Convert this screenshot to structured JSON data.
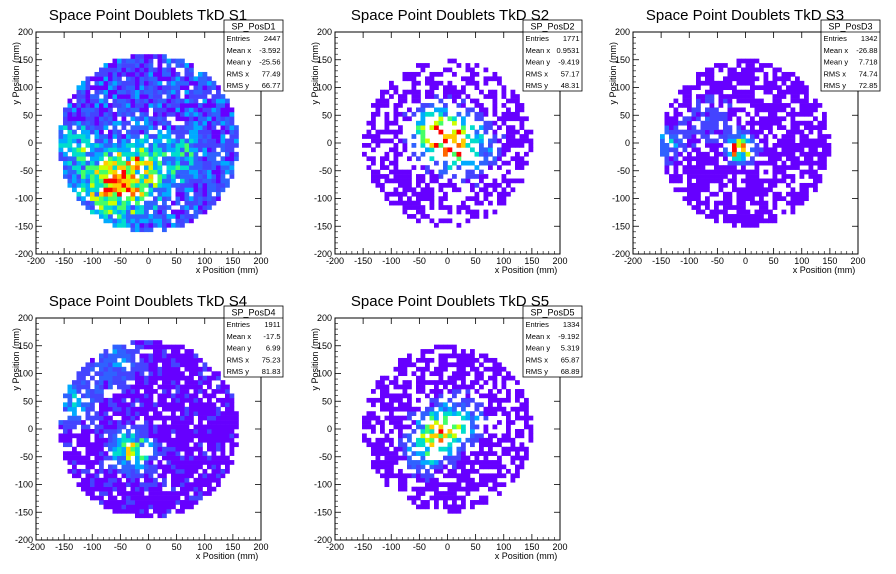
{
  "chart_data": [
    {
      "type": "heatmap",
      "title": "Space Point Doublets TkD S1",
      "xlabel": "x Position (mm)",
      "ylabel": "y Position (mm)",
      "xlim": [
        -200,
        200
      ],
      "ylim": [
        -200,
        200
      ],
      "xticks": [
        "-200",
        "-150",
        "-100",
        "-50",
        "0",
        "50",
        "100",
        "150",
        "200"
      ],
      "yticks": [
        "-200",
        "-150",
        "-100",
        "-50",
        "0",
        "50",
        "100",
        "150",
        "200"
      ],
      "stats_name": "SP_PosD1",
      "stats": [
        {
          "label": "Entries",
          "value": "2447"
        },
        {
          "label": "Mean x",
          "value": "-3.592"
        },
        {
          "label": "Mean y",
          "value": "-25.56"
        },
        {
          "label": "RMS x",
          "value": "77.49"
        },
        {
          "label": "RMS y",
          "value": "66.77"
        }
      ],
      "density": {
        "radius": 160,
        "fill": 0.9,
        "level": 0.34,
        "hotspots": [
          [
            -60,
            -80,
            40,
            0.55
          ],
          [
            -20,
            -40,
            35,
            0.3
          ],
          [
            -130,
            0,
            25,
            0.25
          ],
          [
            60,
            -20,
            30,
            0.2
          ]
        ]
      }
    },
    {
      "type": "heatmap",
      "title": "Space Point Doublets TkD S2",
      "xlabel": "x Position (mm)",
      "ylabel": "y Position (mm)",
      "xlim": [
        -200,
        200
      ],
      "ylim": [
        -200,
        200
      ],
      "xticks": [
        "-200",
        "-150",
        "-100",
        "-50",
        "0",
        "50",
        "100",
        "150",
        "200"
      ],
      "yticks": [
        "-200",
        "-150",
        "-100",
        "-50",
        "0",
        "50",
        "100",
        "150",
        "200"
      ],
      "stats_name": "SP_PosD2",
      "stats": [
        {
          "label": "Entries",
          "value": "1771"
        },
        {
          "label": "Mean x",
          "value": "0.9531"
        },
        {
          "label": "Mean y",
          "value": "-9.419"
        },
        {
          "label": "RMS x",
          "value": "57.17"
        },
        {
          "label": "RMS y",
          "value": "48.31"
        }
      ],
      "density": {
        "radius": 150,
        "fill": 0.5,
        "level": 0.08,
        "hotspots": [
          [
            0,
            5,
            30,
            0.7
          ],
          [
            -25,
            25,
            25,
            0.45
          ],
          [
            40,
            -10,
            30,
            0.3
          ]
        ]
      }
    },
    {
      "type": "heatmap",
      "title": "Space Point Doublets TkD S3",
      "xlabel": "x Position (mm)",
      "ylabel": "y Position (mm)",
      "xlim": [
        -200,
        200
      ],
      "ylim": [
        -200,
        200
      ],
      "xticks": [
        "-200",
        "-150",
        "-100",
        "-50",
        "0",
        "50",
        "100",
        "150",
        "200"
      ],
      "yticks": [
        "-200",
        "-150",
        "-100",
        "-50",
        "0",
        "50",
        "100",
        "150",
        "200"
      ],
      "stats_name": "SP_PosD3",
      "stats": [
        {
          "label": "Entries",
          "value": "1342"
        },
        {
          "label": "Mean x",
          "value": "-26.88"
        },
        {
          "label": "Mean y",
          "value": "7.718"
        },
        {
          "label": "RMS x",
          "value": "74.74"
        },
        {
          "label": "RMS y",
          "value": "72.85"
        }
      ],
      "density": {
        "radius": 150,
        "fill": 0.72,
        "level": 0.06,
        "hotspots": [
          [
            -10,
            -10,
            15,
            0.8
          ],
          [
            -140,
            0,
            20,
            0.3
          ],
          [
            -60,
            40,
            30,
            0.15
          ]
        ]
      }
    },
    {
      "type": "heatmap",
      "title": "Space Point Doublets TkD S4",
      "xlabel": "x Position (mm)",
      "ylabel": "y Position (mm)",
      "xlim": [
        -200,
        200
      ],
      "ylim": [
        -200,
        200
      ],
      "xticks": [
        "-200",
        "-150",
        "-100",
        "-50",
        "0",
        "50",
        "100",
        "150",
        "200"
      ],
      "yticks": [
        "-200",
        "-150",
        "-100",
        "-50",
        "0",
        "50",
        "100",
        "150",
        "200"
      ],
      "stats_name": "SP_PosD4",
      "stats": [
        {
          "label": "Entries",
          "value": "1911"
        },
        {
          "label": "Mean x",
          "value": "-17.5"
        },
        {
          "label": "Mean y",
          "value": "6.99"
        },
        {
          "label": "RMS x",
          "value": "75.23"
        },
        {
          "label": "RMS y",
          "value": "81.83"
        }
      ],
      "density": {
        "radius": 160,
        "fill": 0.85,
        "level": 0.12,
        "hotspots": [
          [
            -30,
            -40,
            25,
            0.5
          ],
          [
            -130,
            50,
            30,
            0.25
          ],
          [
            -60,
            120,
            30,
            0.2
          ]
        ]
      }
    },
    {
      "type": "heatmap",
      "title": "Space Point Doublets TkD S5",
      "xlabel": "x Position (mm)",
      "ylabel": "y Position (mm)",
      "xlim": [
        -200,
        200
      ],
      "ylim": [
        -200,
        200
      ],
      "xticks": [
        "-200",
        "-150",
        "-100",
        "-50",
        "0",
        "50",
        "100",
        "150",
        "200"
      ],
      "yticks": [
        "-200",
        "-150",
        "-100",
        "-50",
        "0",
        "50",
        "100",
        "150",
        "200"
      ],
      "stats_name": "SP_PosD5",
      "stats": [
        {
          "label": "Entries",
          "value": "1334"
        },
        {
          "label": "Mean x",
          "value": "-9.192"
        },
        {
          "label": "Mean y",
          "value": "5.319"
        },
        {
          "label": "RMS x",
          "value": "65.87"
        },
        {
          "label": "RMS y",
          "value": "68.89"
        }
      ],
      "density": {
        "radius": 150,
        "fill": 0.62,
        "level": 0.08,
        "hotspots": [
          [
            -15,
            -5,
            25,
            0.55
          ],
          [
            20,
            15,
            25,
            0.4
          ],
          [
            -40,
            -40,
            25,
            0.3
          ]
        ]
      }
    }
  ],
  "palette": [
    "#6600ff",
    "#4444ff",
    "#2f62ff",
    "#00aaff",
    "#00ddcc",
    "#44ff66",
    "#ccff00",
    "#ffcc00",
    "#ff6600",
    "#ff0000"
  ]
}
